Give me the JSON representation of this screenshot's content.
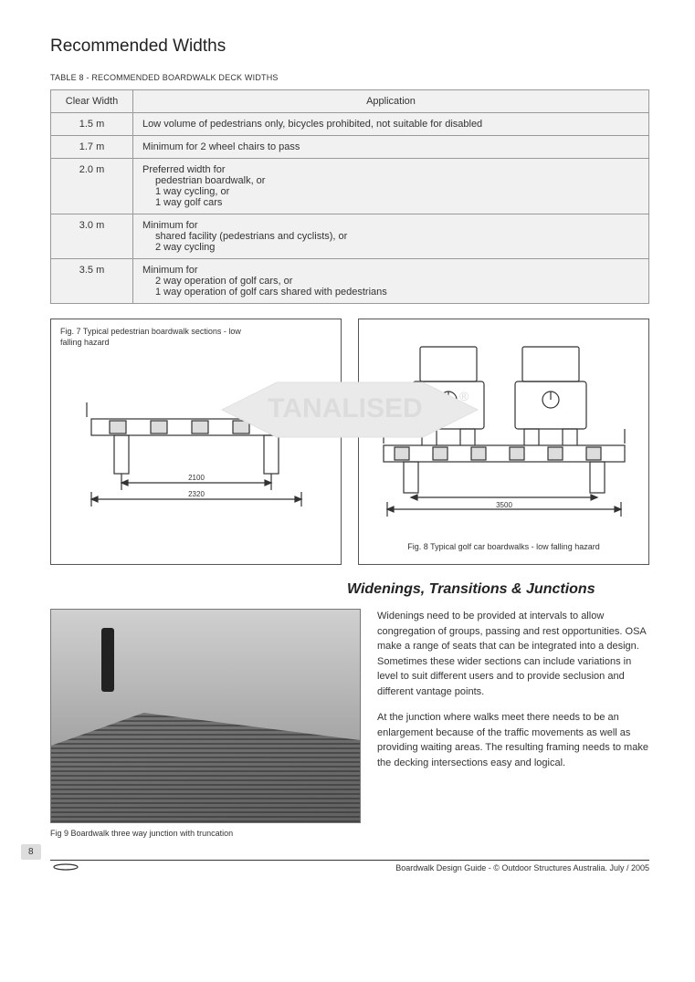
{
  "heading": "Recommended Widths",
  "table_caption": "TABLE 8 - RECOMMENDED BOARDWALK DECK WIDTHS",
  "table": {
    "headers": [
      "Clear Width",
      "Application"
    ],
    "rows": [
      {
        "width": "1.5 m",
        "lines": [
          "Low volume of pedestrians only, bicycles prohibited, not suitable for disabled"
        ]
      },
      {
        "width": "1.7 m",
        "lines": [
          "Minimum for 2 wheel chairs to pass"
        ]
      },
      {
        "width": "2.0 m",
        "lines": [
          "Preferred width for",
          "pedestrian boardwalk, or",
          "1 way cycling, or",
          "1 way golf cars"
        ]
      },
      {
        "width": "3.0 m",
        "lines": [
          "Minimum for",
          "shared facility (pedestrians and cyclists), or",
          "2 way cycling"
        ]
      },
      {
        "width": "3.5 m",
        "lines": [
          "Minimum for",
          "2 way operation of golf cars, or",
          "1 way operation of golf cars shared with pedestrians"
        ]
      }
    ]
  },
  "fig7_caption": "Fig. 7 Typical pedestrian boardwalk sections - low falling hazard",
  "fig8_caption": "Fig. 8 Typical golf car boardwalks - low falling hazard",
  "fig7_dims": {
    "inner": "2100",
    "outer": "2320"
  },
  "fig8_dims": {
    "outer": "3500"
  },
  "watermark_text": "TANALISED",
  "section_title": "Widenings, Transitions & Junctions",
  "paragraphs": [
    "Widenings need to be provided at intervals to allow congregation of groups, passing and rest opportunities.  OSA make a range of seats that can be integrated into a design. Sometimes these wider sections can include variations in level to suit different users and to provide seclusion and different vantage points.",
    "At the junction where walks meet there needs to be an enlargement because of the traffic movements as well as providing waiting areas. The resulting framing needs to make the decking intersections easy and logical."
  ],
  "fig9_caption": "Fig 9 Boardwalk three way junction with truncation",
  "page_number": "8",
  "footer_text": "Boardwalk Design Guide - © Outdoor Structures Australia. July / 2005",
  "colors": {
    "table_bg": "#f1f1f1",
    "border": "#999999",
    "text": "#333333",
    "watermark": "#e5e5e5"
  }
}
